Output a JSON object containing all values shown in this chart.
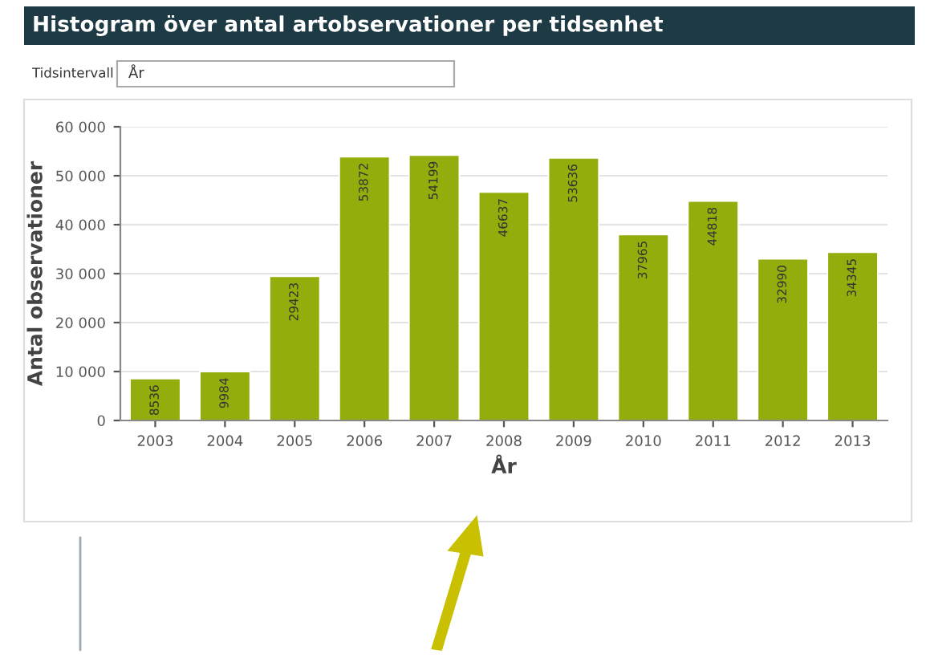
{
  "chart_data": {
    "type": "bar",
    "title": "Histogram över antal artobservationer per tidsenhet",
    "subtitle": "Tidsintervall",
    "annotations": [
      "År"
    ],
    "categories": [
      "2003",
      "2004",
      "2005",
      "2006",
      "2007",
      "2008",
      "2009",
      "2010",
      "2011",
      "2012",
      "2013"
    ],
    "values": [
      8536,
      9984,
      29423,
      53872,
      54199,
      46637,
      53636,
      37965,
      44818,
      32990,
      34345
    ],
    "color": "#93ad0c",
    "data_labels": true,
    "xlabel": "År",
    "ylabel": "Antal observationer",
    "ylim": [
      0,
      60000
    ],
    "yticks": [
      0,
      {
        "value": 10000,
        "label": "10 000"
      },
      {
        "value": 20000,
        "label": "20 000"
      },
      {
        "value": 30000,
        "label": "30 000"
      },
      {
        "value": 40000,
        "label": "40 000"
      },
      {
        "value": 50000,
        "label": "50 000"
      },
      {
        "value": 60000,
        "label": "60 000"
      }
    ],
    "grid": "y",
    "legend": false
  }
}
